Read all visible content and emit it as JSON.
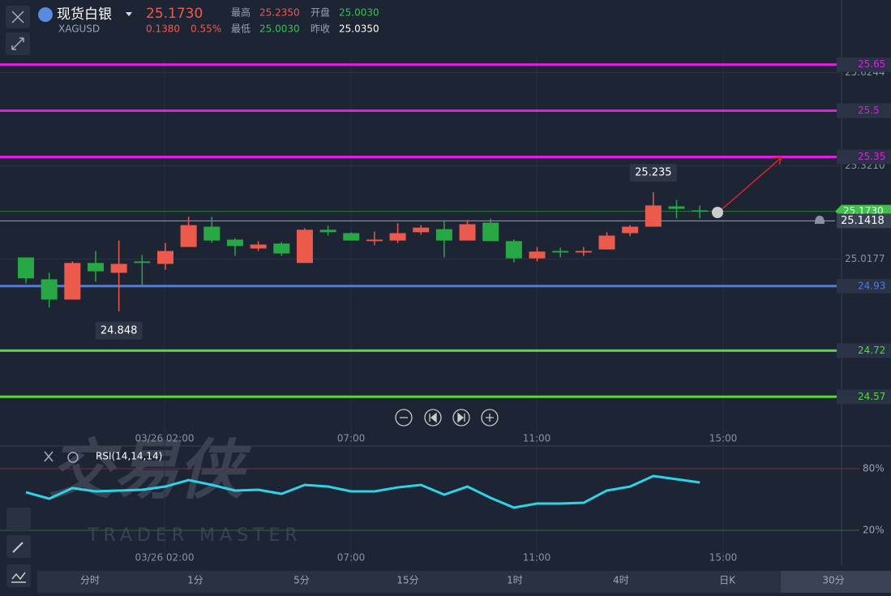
{
  "header": {
    "name": "现货白银",
    "symbol": "XAGUSD",
    "price": "25.1730",
    "change": "0.1380",
    "change_pct": "0.55%",
    "high_label": "最高",
    "high": "25.2350",
    "open_label": "开盘",
    "open": "25.0030",
    "low_label": "最低",
    "low": "25.0030",
    "prev_close_label": "昨收",
    "prev_close": "25.0350"
  },
  "price_chart": {
    "ylim": [
      24.41,
      25.86
    ],
    "up_color": "#ec5a4e",
    "down_color": "#27a845",
    "price_ticks": [
      25.6244,
      {
        "value": 25.321,
        "label": "25.3210"
      },
      25.0177
    ],
    "last_price": {
      "value": 25.173,
      "label": "25.1730"
    },
    "cursor_price": 25.1418,
    "levels": [
      {
        "value": 25.65,
        "color": "#e21de0"
      },
      {
        "value": 25.5,
        "color": "#e21de0"
      },
      {
        "value": 25.35,
        "color": "#e21de0"
      },
      {
        "value": 24.93,
        "color": "#4a7ee0"
      },
      {
        "value": 24.72,
        "color": "#58d83a"
      },
      {
        "value": 24.57,
        "color": "#58d83a"
      }
    ],
    "time_labels": [
      "03/26 02:00",
      "07:00",
      "11:00",
      "15:00"
    ],
    "candles": [
      {
        "open": 25.023,
        "high": 25.023,
        "low": 24.939,
        "close": 24.955
      },
      {
        "open": 24.952,
        "high": 24.973,
        "low": 24.86,
        "close": 24.886
      },
      {
        "open": 24.886,
        "high": 25.01,
        "low": 24.886,
        "close": 25.005
      },
      {
        "open": 25.005,
        "high": 25.044,
        "low": 24.944,
        "close": 24.978
      },
      {
        "open": 24.973,
        "high": 25.078,
        "low": 24.848,
        "close": 25.002
      },
      {
        "open": 25.01,
        "high": 25.031,
        "low": 24.934,
        "close": 25.005
      },
      {
        "open": 25.002,
        "high": 25.07,
        "low": 24.983,
        "close": 25.044
      },
      {
        "open": 25.057,
        "high": 25.155,
        "low": 25.057,
        "close": 25.128
      },
      {
        "open": 25.123,
        "high": 25.155,
        "low": 25.07,
        "close": 25.078
      },
      {
        "open": 25.081,
        "high": 25.086,
        "low": 25.028,
        "close": 25.06
      },
      {
        "open": 25.052,
        "high": 25.076,
        "low": 25.044,
        "close": 25.065
      },
      {
        "open": 25.068,
        "high": 25.073,
        "low": 25.028,
        "close": 25.036
      },
      {
        "open": 25.005,
        "high": 25.118,
        "low": 25.005,
        "close": 25.113
      },
      {
        "open": 25.113,
        "high": 25.126,
        "low": 25.094,
        "close": 25.105
      },
      {
        "open": 25.102,
        "high": 25.105,
        "low": 25.078,
        "close": 25.078
      },
      {
        "open": 25.076,
        "high": 25.107,
        "low": 25.063,
        "close": 25.081
      },
      {
        "open": 25.078,
        "high": 25.134,
        "low": 25.07,
        "close": 25.102
      },
      {
        "open": 25.105,
        "high": 25.128,
        "low": 25.097,
        "close": 25.12
      },
      {
        "open": 25.115,
        "high": 25.144,
        "low": 25.023,
        "close": 25.078
      },
      {
        "open": 25.078,
        "high": 25.144,
        "low": 25.078,
        "close": 25.131
      },
      {
        "open": 25.136,
        "high": 25.149,
        "low": 25.076,
        "close": 25.076
      },
      {
        "open": 25.076,
        "high": 25.081,
        "low": 25.007,
        "close": 25.02
      },
      {
        "open": 25.02,
        "high": 25.057,
        "low": 25.01,
        "close": 25.042
      },
      {
        "open": 25.044,
        "high": 25.055,
        "low": 25.023,
        "close": 25.039
      },
      {
        "open": 25.039,
        "high": 25.057,
        "low": 25.028,
        "close": 25.044
      },
      {
        "open": 25.049,
        "high": 25.105,
        "low": 25.049,
        "close": 25.094
      },
      {
        "open": 25.102,
        "high": 25.128,
        "low": 25.092,
        "close": 25.123
      },
      {
        "open": 25.123,
        "high": 25.235,
        "low": 25.123,
        "close": 25.192
      },
      {
        "open": 25.189,
        "high": 25.21,
        "low": 25.15,
        "close": 25.181
      },
      {
        "open": 25.176,
        "high": 25.192,
        "low": 25.15,
        "close": 25.173
      }
    ]
  },
  "rsi": {
    "label": "RSI(14,14,14)",
    "ylim": [
      -16.3,
      102.1
    ],
    "color": "#2ed3e8",
    "levels": [
      {
        "value": 80,
        "label": "80%"
      },
      {
        "value": 20,
        "label": "20%"
      }
    ],
    "values": [
      57.1,
      50.8,
      61.1,
      57.9,
      58.7,
      59.5,
      62.6,
      68.9,
      64.2,
      58.7,
      59.5,
      55.5,
      64.2,
      62.6,
      57.9,
      57.9,
      61.8,
      64.2,
      54.7,
      62.6,
      51.6,
      42.1,
      46.1,
      46.1,
      46.8,
      58.7,
      62.6,
      72.9,
      69.7,
      66.6
    ]
  },
  "watermark": {
    "title": "交易侠",
    "subtitle": "TRADER MASTER"
  },
  "tabs": [
    "分时",
    "1分",
    "5分",
    "15分",
    "1时",
    "4时",
    "日K",
    "30分"
  ]
}
